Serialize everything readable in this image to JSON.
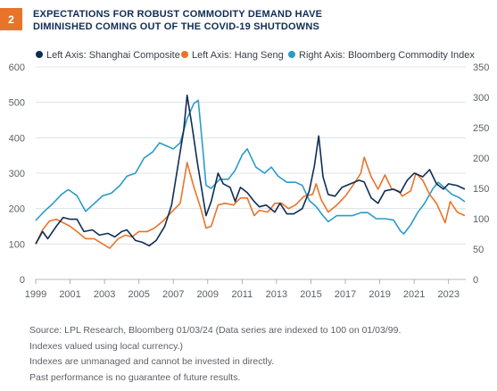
{
  "badge": "2",
  "title": [
    "EXPECTATIONS FOR ROBUST COMMODITY DEMAND HAVE",
    "DIMINISHED COMING OUT OF THE COVID-19 SHUTDOWNS"
  ],
  "notes": [
    "Source: LPL Research, Bloomberg 01/03/24  (Data series are indexed to 100 on 01/03/99.",
    "Indexes valued using local currency.)",
    "Indexes are unmanaged and cannot be invested in directly.",
    "Past performance is no guarantee of future results."
  ],
  "chart_data": {
    "type": "line",
    "legend": "top",
    "grid": "horizontal",
    "x_ticks": [
      "1999",
      "2001",
      "2003",
      "2005",
      "2007",
      "2009",
      "2011",
      "2013",
      "2015",
      "2017",
      "2019",
      "2021",
      "2023"
    ],
    "xlim": [
      1999,
      2024
    ],
    "left_axis": {
      "ylim": [
        0,
        600
      ],
      "ticks": [
        "0",
        "100",
        "200",
        "300",
        "400",
        "500",
        "600"
      ]
    },
    "right_axis": {
      "ylim": [
        0,
        350
      ],
      "ticks": [
        "0",
        "50",
        "100",
        "150",
        "200",
        "250",
        "300",
        "350"
      ]
    },
    "series": [
      {
        "name": "Left Axis: Shanghai Composite",
        "axis": "left",
        "color": "#0f2d54",
        "points": [
          [
            1999.0,
            100
          ],
          [
            1999.4,
            135
          ],
          [
            1999.7,
            115
          ],
          [
            2000.2,
            150
          ],
          [
            2000.6,
            175
          ],
          [
            2001.0,
            170
          ],
          [
            2001.4,
            170
          ],
          [
            2001.8,
            135
          ],
          [
            2002.3,
            140
          ],
          [
            2002.7,
            125
          ],
          [
            2003.2,
            130
          ],
          [
            2003.6,
            120
          ],
          [
            2004.0,
            135
          ],
          [
            2004.3,
            140
          ],
          [
            2004.8,
            110
          ],
          [
            2005.2,
            105
          ],
          [
            2005.6,
            95
          ],
          [
            2006.0,
            110
          ],
          [
            2006.5,
            150
          ],
          [
            2006.9,
            210
          ],
          [
            2007.3,
            330
          ],
          [
            2007.6,
            420
          ],
          [
            2007.8,
            520
          ],
          [
            2008.1,
            430
          ],
          [
            2008.4,
            330
          ],
          [
            2008.7,
            240
          ],
          [
            2008.9,
            180
          ],
          [
            2009.2,
            220
          ],
          [
            2009.6,
            300
          ],
          [
            2009.9,
            270
          ],
          [
            2010.3,
            260
          ],
          [
            2010.6,
            220
          ],
          [
            2010.9,
            260
          ],
          [
            2011.3,
            245
          ],
          [
            2011.7,
            220
          ],
          [
            2012.0,
            205
          ],
          [
            2012.4,
            210
          ],
          [
            2012.9,
            190
          ],
          [
            2013.2,
            215
          ],
          [
            2013.6,
            185
          ],
          [
            2014.0,
            185
          ],
          [
            2014.5,
            200
          ],
          [
            2014.9,
            250
          ],
          [
            2015.2,
            320
          ],
          [
            2015.45,
            405
          ],
          [
            2015.7,
            290
          ],
          [
            2016.0,
            240
          ],
          [
            2016.4,
            235
          ],
          [
            2016.8,
            260
          ],
          [
            2017.3,
            270
          ],
          [
            2017.8,
            280
          ],
          [
            2018.1,
            275
          ],
          [
            2018.5,
            230
          ],
          [
            2018.9,
            215
          ],
          [
            2019.3,
            250
          ],
          [
            2019.8,
            255
          ],
          [
            2020.2,
            245
          ],
          [
            2020.6,
            280
          ],
          [
            2021.0,
            300
          ],
          [
            2021.5,
            290
          ],
          [
            2021.9,
            310
          ],
          [
            2022.3,
            270
          ],
          [
            2022.7,
            255
          ],
          [
            2023.0,
            270
          ],
          [
            2023.5,
            265
          ],
          [
            2023.95,
            255
          ]
        ]
      },
      {
        "name": "Left Axis: Hang Seng",
        "axis": "left",
        "color": "#e8742a",
        "points": [
          [
            1999.0,
            100
          ],
          [
            1999.4,
            140
          ],
          [
            1999.8,
            165
          ],
          [
            2000.2,
            170
          ],
          [
            2000.6,
            160
          ],
          [
            2001.0,
            150
          ],
          [
            2001.4,
            135
          ],
          [
            2001.9,
            115
          ],
          [
            2002.4,
            115
          ],
          [
            2002.9,
            100
          ],
          [
            2003.3,
            88
          ],
          [
            2003.8,
            115
          ],
          [
            2004.2,
            125
          ],
          [
            2004.6,
            120
          ],
          [
            2005.0,
            135
          ],
          [
            2005.5,
            135
          ],
          [
            2005.9,
            145
          ],
          [
            2006.4,
            165
          ],
          [
            2006.9,
            190
          ],
          [
            2007.4,
            215
          ],
          [
            2007.8,
            330
          ],
          [
            2008.2,
            260
          ],
          [
            2008.6,
            200
          ],
          [
            2008.9,
            145
          ],
          [
            2009.2,
            150
          ],
          [
            2009.6,
            210
          ],
          [
            2010.0,
            215
          ],
          [
            2010.5,
            210
          ],
          [
            2010.9,
            230
          ],
          [
            2011.3,
            230
          ],
          [
            2011.7,
            180
          ],
          [
            2012.0,
            195
          ],
          [
            2012.5,
            190
          ],
          [
            2012.9,
            215
          ],
          [
            2013.3,
            215
          ],
          [
            2013.7,
            200
          ],
          [
            2014.1,
            210
          ],
          [
            2014.6,
            235
          ],
          [
            2015.1,
            240
          ],
          [
            2015.3,
            270
          ],
          [
            2015.6,
            225
          ],
          [
            2016.0,
            190
          ],
          [
            2016.5,
            210
          ],
          [
            2017.0,
            235
          ],
          [
            2017.5,
            270
          ],
          [
            2017.9,
            300
          ],
          [
            2018.1,
            345
          ],
          [
            2018.5,
            290
          ],
          [
            2018.9,
            255
          ],
          [
            2019.3,
            295
          ],
          [
            2019.7,
            255
          ],
          [
            2020.1,
            250
          ],
          [
            2020.3,
            235
          ],
          [
            2020.8,
            250
          ],
          [
            2021.1,
            300
          ],
          [
            2021.5,
            280
          ],
          [
            2021.9,
            240
          ],
          [
            2022.3,
            215
          ],
          [
            2022.8,
            160
          ],
          [
            2023.1,
            220
          ],
          [
            2023.5,
            190
          ],
          [
            2023.95,
            180
          ]
        ]
      },
      {
        "name": "Right Axis: Bloomberg Commodity Index",
        "axis": "right",
        "color": "#2b9bc7",
        "points": [
          [
            1999.0,
            97
          ],
          [
            1999.5,
            112
          ],
          [
            2000.0,
            125
          ],
          [
            2000.5,
            140
          ],
          [
            2000.9,
            148
          ],
          [
            2001.4,
            138
          ],
          [
            2001.9,
            112
          ],
          [
            2002.4,
            125
          ],
          [
            2002.9,
            138
          ],
          [
            2003.4,
            142
          ],
          [
            2003.9,
            155
          ],
          [
            2004.3,
            170
          ],
          [
            2004.8,
            175
          ],
          [
            2005.3,
            200
          ],
          [
            2005.8,
            210
          ],
          [
            2006.2,
            225
          ],
          [
            2006.6,
            220
          ],
          [
            2007.0,
            215
          ],
          [
            2007.4,
            225
          ],
          [
            2007.8,
            265
          ],
          [
            2008.2,
            290
          ],
          [
            2008.45,
            295
          ],
          [
            2008.7,
            220
          ],
          [
            2008.9,
            155
          ],
          [
            2009.2,
            150
          ],
          [
            2009.7,
            165
          ],
          [
            2010.2,
            165
          ],
          [
            2010.6,
            180
          ],
          [
            2011.0,
            205
          ],
          [
            2011.3,
            215
          ],
          [
            2011.8,
            185
          ],
          [
            2012.3,
            175
          ],
          [
            2012.7,
            185
          ],
          [
            2013.1,
            170
          ],
          [
            2013.6,
            160
          ],
          [
            2014.1,
            160
          ],
          [
            2014.5,
            155
          ],
          [
            2014.9,
            130
          ],
          [
            2015.3,
            120
          ],
          [
            2015.7,
            105
          ],
          [
            2016.0,
            95
          ],
          [
            2016.5,
            105
          ],
          [
            2016.9,
            105
          ],
          [
            2017.4,
            105
          ],
          [
            2017.9,
            110
          ],
          [
            2018.3,
            110
          ],
          [
            2018.8,
            100
          ],
          [
            2019.3,
            100
          ],
          [
            2019.8,
            98
          ],
          [
            2020.2,
            80
          ],
          [
            2020.4,
            75
          ],
          [
            2020.8,
            90
          ],
          [
            2021.2,
            110
          ],
          [
            2021.6,
            125
          ],
          [
            2022.1,
            150
          ],
          [
            2022.4,
            160
          ],
          [
            2022.8,
            150
          ],
          [
            2023.2,
            140
          ],
          [
            2023.6,
            135
          ],
          [
            2023.95,
            128
          ]
        ]
      }
    ]
  }
}
